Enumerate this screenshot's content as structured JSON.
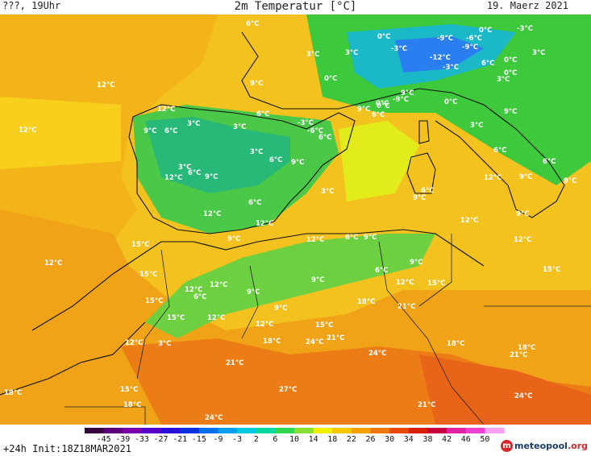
{
  "header": {
    "left": "???, 19Uhr",
    "title": "2m Temperatur [°C]",
    "date": "19. Maerz 2021"
  },
  "footer": {
    "init": "+24h Init:18Z18MAR2021",
    "logo_mark": "m",
    "logo_name": "meteopool",
    "logo_suffix": ".org"
  },
  "scale": {
    "labels": [
      "-45",
      "-39",
      "-33",
      "-27",
      "-21",
      "-15",
      "-9",
      "-3",
      "2",
      "6",
      "10",
      "14",
      "18",
      "22",
      "26",
      "30",
      "34",
      "38",
      "42",
      "46",
      "50"
    ],
    "colors": [
      "#3a0040",
      "#5a007a",
      "#7a00aa",
      "#5500c8",
      "#2a10d8",
      "#0a30e0",
      "#0070f0",
      "#00a0f0",
      "#00c8e0",
      "#00d8a0",
      "#30d850",
      "#8ae030",
      "#f0f000",
      "#f8c800",
      "#f8a000",
      "#f07800",
      "#e84800",
      "#d82000",
      "#c80040",
      "#e020a0",
      "#f040d0",
      "#f8a0f0"
    ]
  },
  "temps": [
    "6°C",
    "3°C",
    "3°C",
    "0°C",
    "0°C",
    "-9°C",
    "-6°C",
    "0°C",
    "-3°C",
    "-3°C",
    "-9°C",
    "-12°C",
    "-3°C",
    "6°C",
    "0°C",
    "3°C",
    "0°C",
    "3°C",
    "12°C",
    "9°C",
    "12°C",
    "12°C",
    "9°C",
    "6°C",
    "3°C",
    "3°C",
    "6°C",
    "-3°C",
    "-6°C",
    "6°C",
    "9°C",
    "0°C",
    "6°C",
    "9°C",
    "-9°C",
    "3°C",
    "0°C",
    "0°C",
    "9°C",
    "3°C",
    "6°C",
    "9°C",
    "3°C",
    "6°C",
    "9°C",
    "12°C",
    "12°C",
    "9°C",
    "9°C",
    "6°C",
    "6°C",
    "6°C",
    "3°C",
    "6°C",
    "12°C",
    "9°C",
    "9°C",
    "12°C",
    "12°C",
    "9°C",
    "15°C",
    "12°C",
    "12°C",
    "6°C",
    "9°C",
    "12°C",
    "15°C",
    "15°C",
    "9°C",
    "6°C",
    "12°C",
    "15°C",
    "6°C",
    "12°C",
    "12°C",
    "9°C",
    "15°C",
    "9°C",
    "9°C",
    "12°C",
    "18°C",
    "21°C",
    "15°C",
    "12°C",
    "3°C",
    "15°C",
    "12°C",
    "18°C",
    "24°C",
    "21°C",
    "18°C",
    "18°C",
    "21°C",
    "21°C",
    "24°C",
    "18°C",
    "15°C",
    "18°C",
    "27°C",
    "21°C",
    "24°C",
    "24°C"
  ]
}
